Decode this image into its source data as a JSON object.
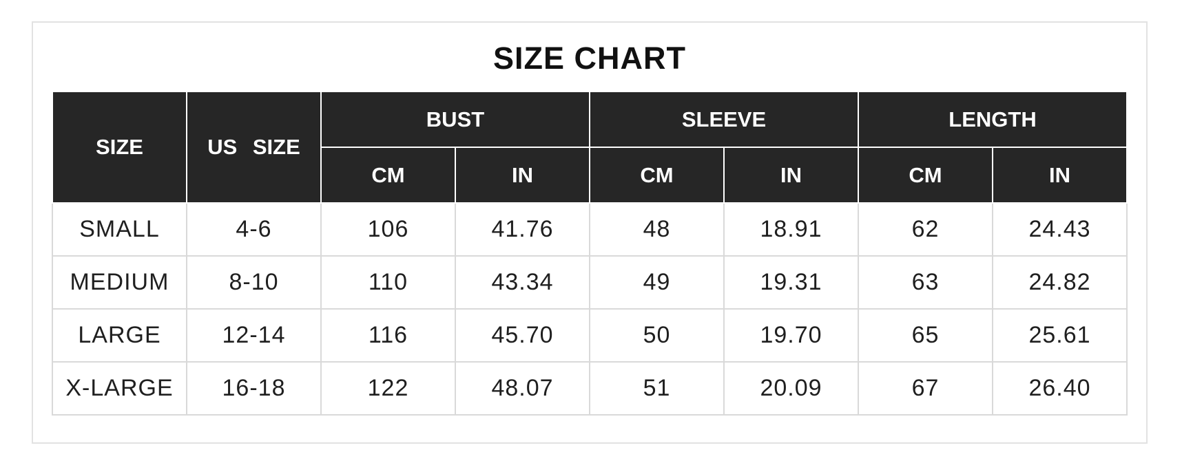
{
  "title": "SIZE CHART",
  "header": {
    "size": "SIZE",
    "us_size": "US SIZE",
    "groups": [
      {
        "label": "BUST",
        "cm": "CM",
        "in": "IN"
      },
      {
        "label": "SLEEVE",
        "cm": "CM",
        "in": "IN"
      },
      {
        "label": "LENGTH",
        "cm": "CM",
        "in": "IN"
      }
    ]
  },
  "rows": [
    {
      "size": "SMALL",
      "us_size": "4-6",
      "bust_cm": "106",
      "bust_in": "41.76",
      "sleeve_cm": "48",
      "sleeve_in": "18.91",
      "length_cm": "62",
      "length_in": "24.43"
    },
    {
      "size": "MEDIUM",
      "us_size": "8-10",
      "bust_cm": "110",
      "bust_in": "43.34",
      "sleeve_cm": "49",
      "sleeve_in": "19.31",
      "length_cm": "63",
      "length_in": "24.82"
    },
    {
      "size": "LARGE",
      "us_size": "12-14",
      "bust_cm": "116",
      "bust_in": "45.70",
      "sleeve_cm": "50",
      "sleeve_in": "19.70",
      "length_cm": "65",
      "length_in": "25.61"
    },
    {
      "size": "X-LARGE",
      "us_size": "16-18",
      "bust_cm": "122",
      "bust_in": "48.07",
      "sleeve_cm": "51",
      "sleeve_in": "20.09",
      "length_cm": "67",
      "length_in": "26.40"
    }
  ],
  "colors": {
    "header_bg": "#262626",
    "header_text": "#ffffff",
    "body_text": "#1f1f1f",
    "grid_line": "#d9d9d9",
    "card_border": "#e2e2e2",
    "page_bg": "#ffffff"
  },
  "chart_data": {
    "type": "table",
    "title": "SIZE CHART",
    "columns": [
      "SIZE",
      "US SIZE",
      "BUST CM",
      "BUST IN",
      "SLEEVE CM",
      "SLEEVE IN",
      "LENGTH CM",
      "LENGTH IN"
    ],
    "rows": [
      [
        "SMALL",
        "4-6",
        106,
        41.76,
        48,
        18.91,
        62,
        24.43
      ],
      [
        "MEDIUM",
        "8-10",
        110,
        43.34,
        49,
        19.31,
        63,
        24.82
      ],
      [
        "LARGE",
        "12-14",
        116,
        45.7,
        50,
        19.7,
        65,
        25.61
      ],
      [
        "X-LARGE",
        "16-18",
        122,
        48.07,
        51,
        20.09,
        67,
        26.4
      ]
    ]
  }
}
